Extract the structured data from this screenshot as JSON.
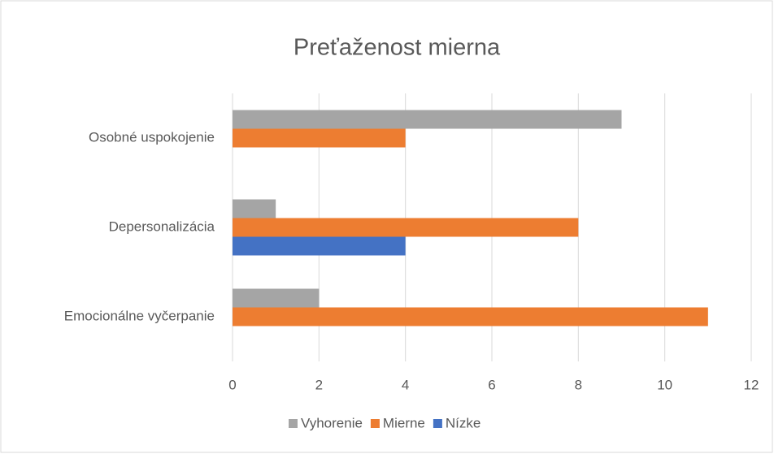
{
  "chart_data": {
    "type": "bar",
    "orientation": "horizontal",
    "title": "Preťaženost mierna",
    "categories": [
      "Emocionálne vyčerpanie",
      "Depersonalizácia",
      "Osobné uspokojenie"
    ],
    "series": [
      {
        "name": "Vyhorenie",
        "color": "#a5a5a5",
        "values": [
          2,
          1,
          9
        ]
      },
      {
        "name": "Mierne",
        "color": "#ed7d31",
        "values": [
          11,
          8,
          4
        ]
      },
      {
        "name": "Nízke",
        "color": "#4472c4",
        "values": [
          0,
          4,
          0
        ]
      }
    ],
    "xlim": [
      0,
      12
    ],
    "xticks": [
      0,
      2,
      4,
      6,
      8,
      10,
      12
    ],
    "grid": true,
    "legend": "bottom"
  }
}
